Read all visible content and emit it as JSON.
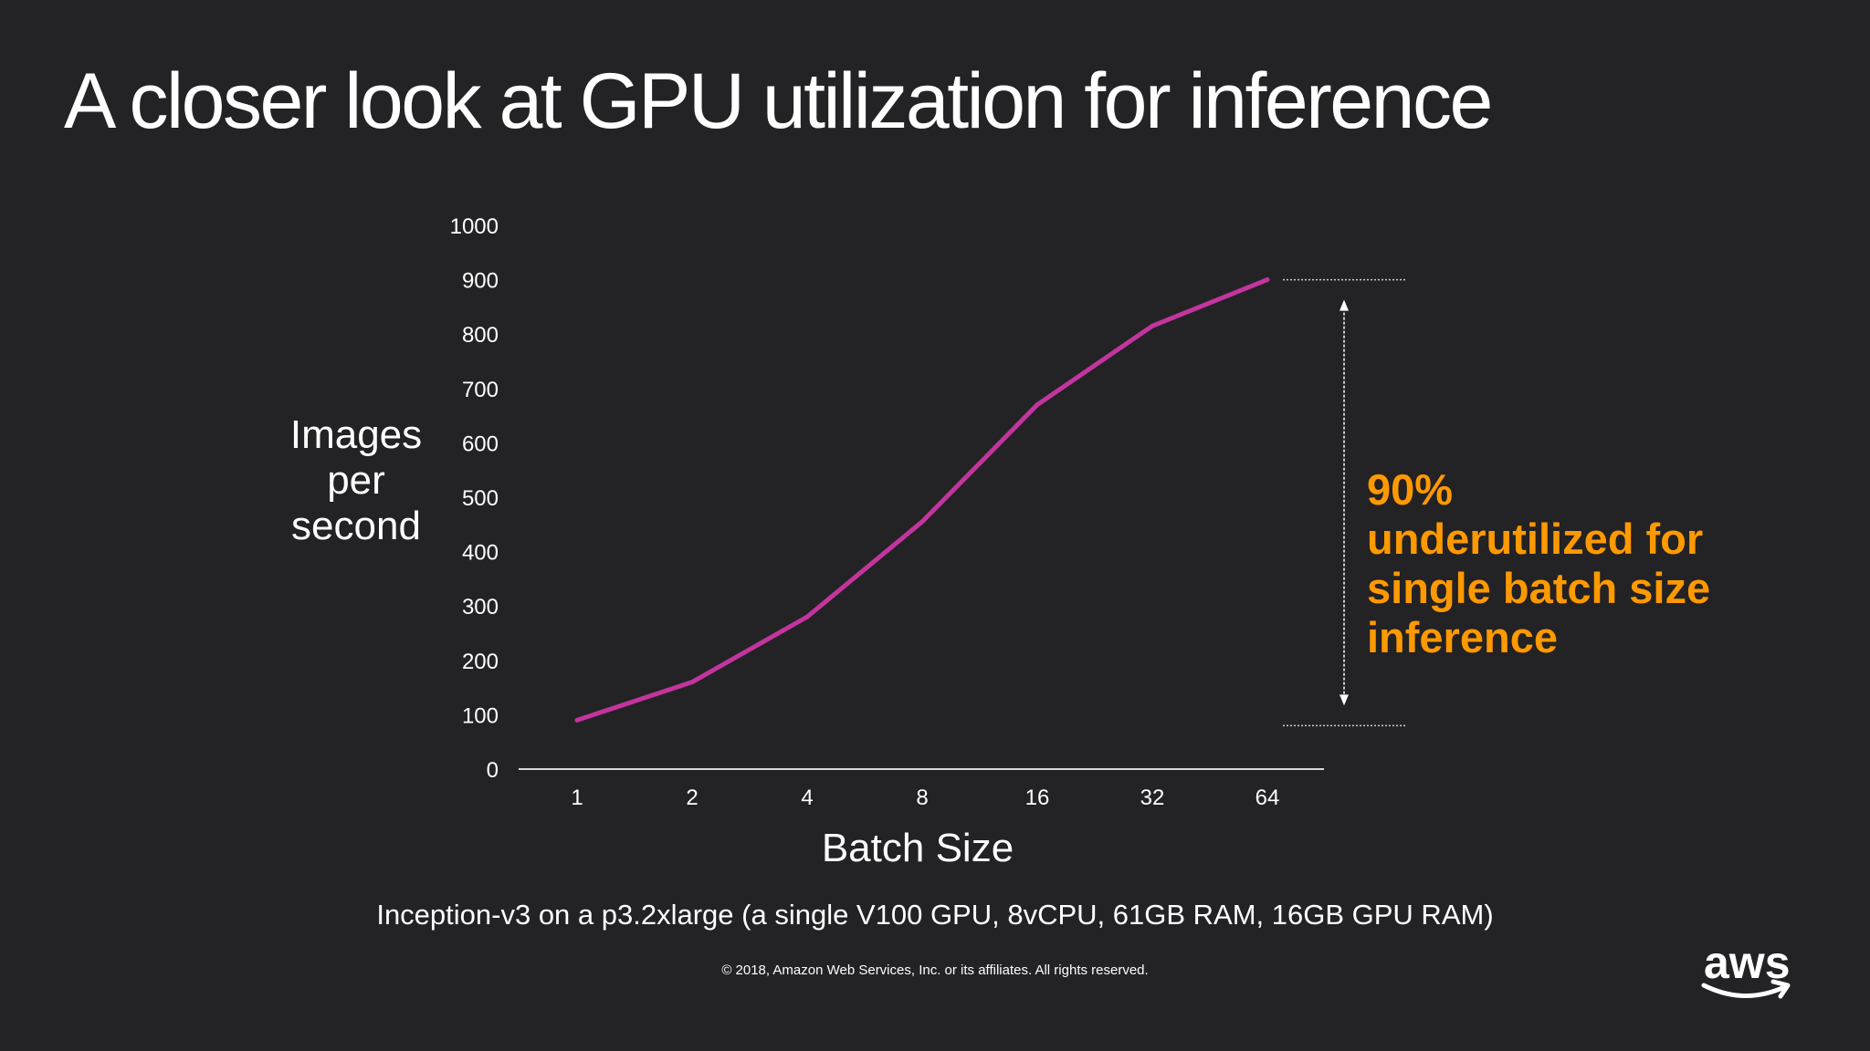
{
  "slide": {
    "title": "A closer look at GPU utilization for inference",
    "caption": "Inception-v3 on a p3.2xlarge (a single V100 GPU, 8vCPU, 61GB RAM, 16GB GPU RAM)",
    "copyright": "© 2018, Amazon Web Services, Inc. or its affiliates. All rights reserved.",
    "logo_text": "aws"
  },
  "annotation": {
    "lines": [
      "90%",
      "underutilized for",
      "single batch size",
      "inference"
    ]
  },
  "colors": {
    "background": "#232224",
    "series": "#c2359e",
    "accent": "#ff9900",
    "text": "#ffffff"
  },
  "chart_data": {
    "type": "line",
    "title": "",
    "xlabel": "Batch Size",
    "ylabel_lines": [
      "Images",
      "per",
      "second"
    ],
    "categories": [
      "1",
      "2",
      "4",
      "8",
      "16",
      "32",
      "64"
    ],
    "series": [
      {
        "name": "Images per second",
        "values": [
          90,
          160,
          280,
          455,
          670,
          815,
          900
        ]
      }
    ],
    "ylim": [
      0,
      1000
    ],
    "yticks": [
      "0",
      "100",
      "200",
      "300",
      "400",
      "500",
      "600",
      "700",
      "800",
      "900",
      "1000"
    ],
    "grid": false,
    "reference_range": [
      80,
      900
    ]
  }
}
